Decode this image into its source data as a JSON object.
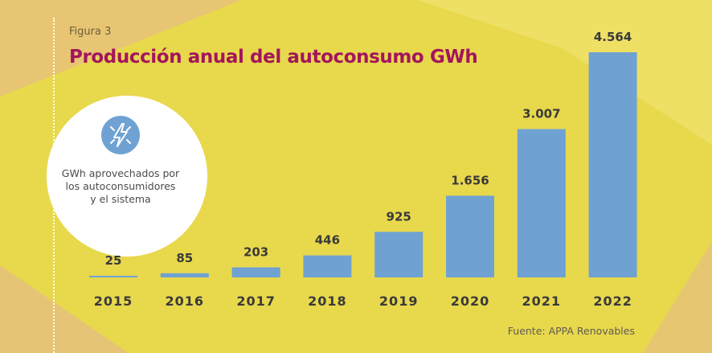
{
  "figure_label": "Figura 3",
  "title": "Producción anual del autoconsumo GWh",
  "legend_card": {
    "icon": "lightning-bolt-icon",
    "lines": [
      "GWh aprovechados por",
      "los autoconsumidores",
      "y el sistema"
    ]
  },
  "source": "Fuente: APPA Renovables",
  "colors": {
    "background": "#e8d84c",
    "accent_light": "#f0e36e",
    "side_tone": "#e6c27a",
    "bar": "#6fa2d3",
    "title": "#a3155c"
  },
  "chart_data": {
    "type": "bar",
    "categories": [
      "2015",
      "2016",
      "2017",
      "2018",
      "2019",
      "2020",
      "2021",
      "2022"
    ],
    "values": [
      25,
      85,
      203,
      446,
      925,
      1656,
      3007,
      4564
    ],
    "value_labels": [
      "25",
      "85",
      "203",
      "446",
      "925",
      "1.656",
      "3.007",
      "4.564"
    ],
    "title": "Producción anual del autoconsumo GWh",
    "xlabel": "",
    "ylabel": "",
    "grid": false
  }
}
